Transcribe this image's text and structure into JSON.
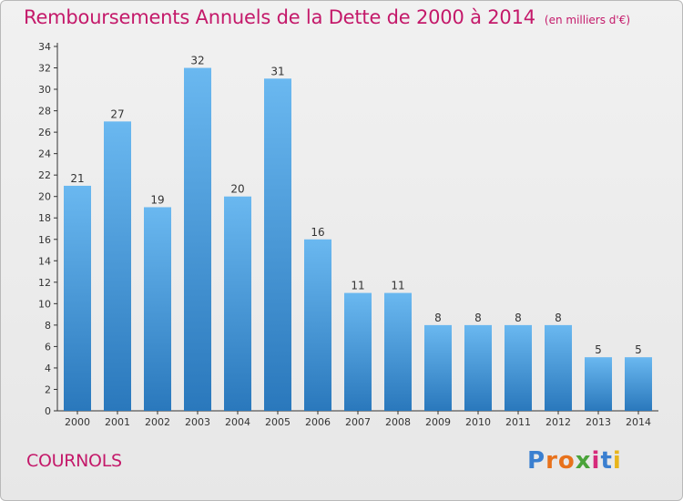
{
  "title": "Remboursements Annuels de la Dette de 2000 à 2014",
  "subtitle": "(en milliers d'€)",
  "commune": "COURNOLS",
  "brand": {
    "text": "Proxiti",
    "letter_colors": [
      "#3a7fd0",
      "#e8721c",
      "#e8721c",
      "#4aa33a",
      "#d62a7a",
      "#3a7fd0",
      "#e8b51c"
    ]
  },
  "colors": {
    "title": "#c4196a",
    "bar_top": "#6ab8f0",
    "bar_bottom": "#2a78bc",
    "axis": "#333333",
    "grid": "#d4d4d4"
  },
  "chart_data": {
    "type": "bar",
    "categories": [
      "2000",
      "2001",
      "2002",
      "2003",
      "2004",
      "2005",
      "2006",
      "2007",
      "2008",
      "2009",
      "2010",
      "2011",
      "2012",
      "2013",
      "2014"
    ],
    "values": [
      21,
      27,
      19,
      32,
      20,
      31,
      16,
      11,
      11,
      8,
      8,
      8,
      8,
      5,
      5
    ],
    "ylim": [
      0,
      34
    ],
    "yticks": [
      0,
      2,
      4,
      6,
      8,
      10,
      12,
      14,
      16,
      18,
      20,
      22,
      24,
      26,
      28,
      30,
      32,
      34
    ],
    "grid": false
  }
}
